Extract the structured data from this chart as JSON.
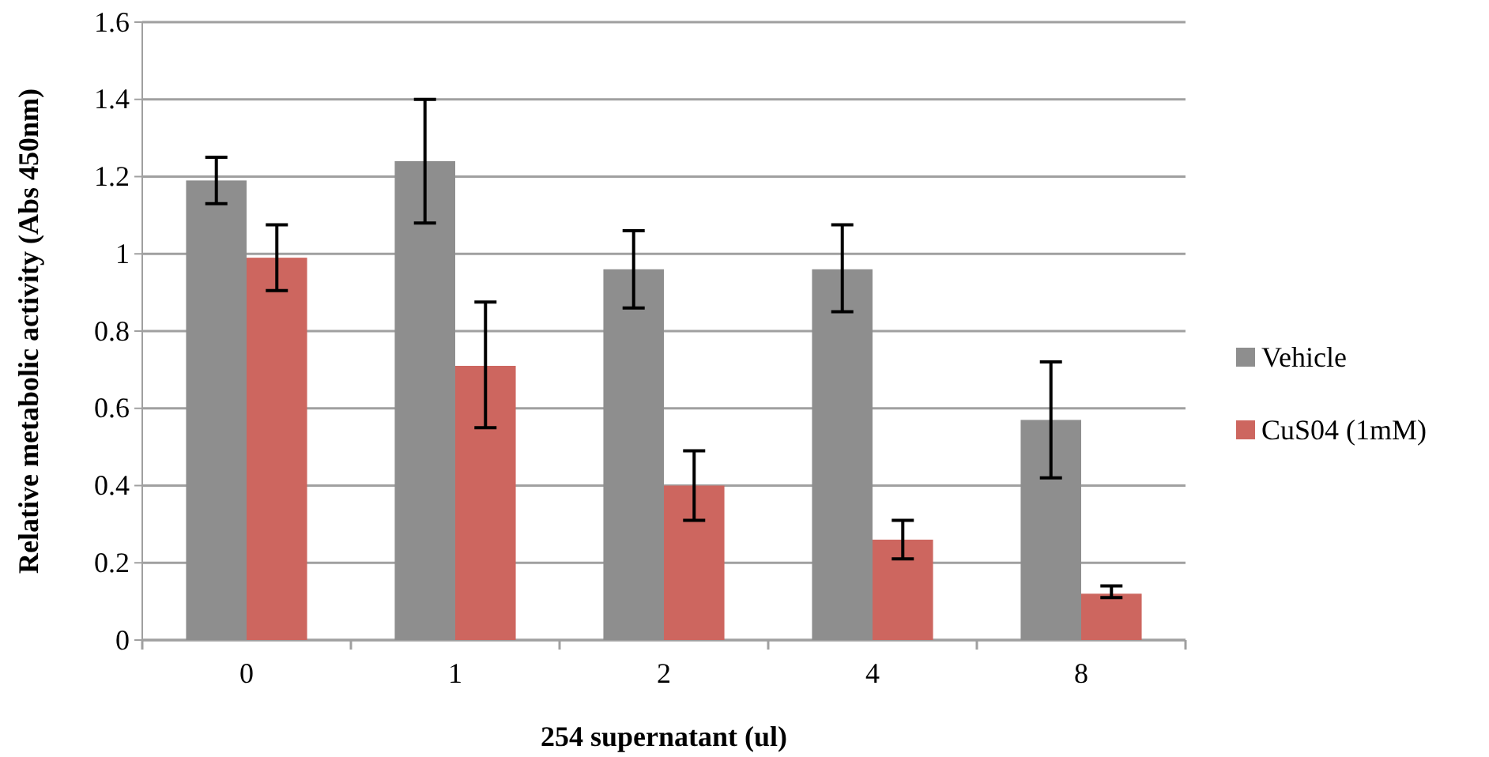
{
  "chart_data": {
    "type": "bar",
    "xlabel": "254 supernatant (ul)",
    "ylabel": "Relative metabolic activity (Abs 450nm)",
    "categories": [
      "0",
      "1",
      "2",
      "4",
      "8"
    ],
    "series": [
      {
        "name": "Vehicle",
        "color": "#8e8e8e",
        "values": [
          1.19,
          1.24,
          0.96,
          0.96,
          0.57
        ],
        "errors": [
          [
            1.13,
            1.25
          ],
          [
            1.08,
            1.4
          ],
          [
            0.86,
            1.06
          ],
          [
            0.85,
            1.075
          ],
          [
            0.42,
            0.72
          ]
        ]
      },
      {
        "name": "CuS04 (1mM)",
        "color": "#cd665f",
        "values": [
          0.99,
          0.71,
          0.4,
          0.26,
          0.12
        ],
        "errors": [
          [
            0.905,
            1.075
          ],
          [
            0.55,
            0.875
          ],
          [
            0.31,
            0.49
          ],
          [
            0.21,
            0.31
          ],
          [
            0.11,
            0.14
          ]
        ]
      }
    ],
    "ylim": [
      0,
      1.6
    ],
    "yticks": [
      0,
      {
        "value": 0.2,
        "label": "0.2"
      },
      {
        "value": 0.4,
        "label": "0.4"
      },
      {
        "value": 0.6,
        "label": "0.6"
      },
      {
        "value": 0.8,
        "label": "0.8"
      },
      1,
      {
        "value": 1.2,
        "label": "1.2"
      },
      {
        "value": 1.4,
        "label": "1.4"
      },
      {
        "value": 1.6,
        "label": "1.6"
      }
    ],
    "grid": "y",
    "legend": "right"
  }
}
